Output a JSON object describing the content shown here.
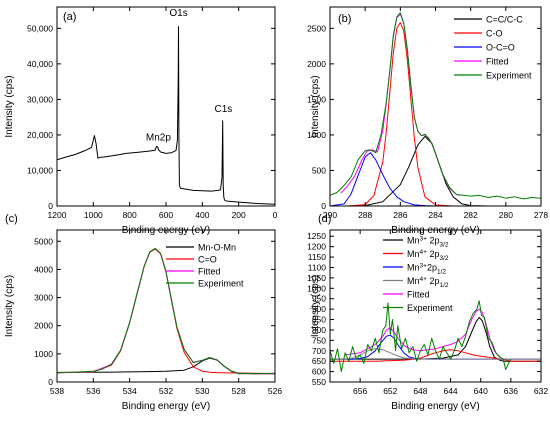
{
  "chart_data": [
    {
      "type": "line",
      "panel_label": "(a)",
      "xlabel": "Binding energy (eV)",
      "ylabel": "Intensity (cps)",
      "xlim": [
        1200,
        0
      ],
      "ylim": [
        0,
        56000
      ],
      "xticks": [
        1200,
        1000,
        800,
        600,
        400,
        200,
        0
      ],
      "yticks": [
        0,
        10000,
        20000,
        30000,
        40000,
        50000
      ],
      "ytick_labels": [
        "0",
        "10,000",
        "20,000",
        "30,000",
        "40,000",
        "50,000"
      ],
      "annotations": [
        {
          "text": "O1s",
          "x": 531,
          "y": 53500
        },
        {
          "text": "Mn2p",
          "x": 642,
          "y": 18500
        },
        {
          "text": "C1s",
          "x": 284,
          "y": 26500
        }
      ],
      "series": [
        {
          "color": "#000000",
          "x": [
            1200,
            1150,
            1100,
            1050,
            1010,
            1000,
            994,
            985,
            975,
            960,
            940,
            900,
            860,
            820,
            780,
            740,
            700,
            660,
            652,
            645,
            640,
            630,
            600,
            570,
            545,
            537,
            533,
            531,
            529,
            526,
            520,
            500,
            450,
            400,
            350,
            300,
            292,
            288,
            285,
            282,
            278,
            270,
            200,
            150,
            100,
            50,
            0
          ],
          "y": [
            13000,
            13800,
            14500,
            15500,
            16500,
            18500,
            19800,
            17500,
            13500,
            13700,
            13800,
            14100,
            14400,
            14800,
            15000,
            15200,
            15400,
            15700,
            16800,
            16500,
            15800,
            15200,
            14800,
            15000,
            15600,
            18500,
            35000,
            50500,
            20000,
            5800,
            5000,
            4800,
            4400,
            4300,
            4200,
            4500,
            8000,
            24000,
            6000,
            2600,
            1700,
            1400,
            1100,
            900,
            700,
            600,
            500
          ]
        }
      ]
    },
    {
      "type": "line",
      "panel_label": "(b)",
      "xlabel": "Binding energy (eV)",
      "ylabel": "Intensity (cps)",
      "xlim": [
        290,
        278
      ],
      "ylim": [
        0,
        2800
      ],
      "xticks": [
        290,
        288,
        286,
        284,
        282,
        280,
        278
      ],
      "yticks": [
        0,
        500,
        1000,
        1500,
        2000,
        2500
      ],
      "legend_placement": "top-right",
      "series": [
        {
          "name": "C=C/C-C",
          "color": "#000000",
          "x": [
            290,
            289,
            288,
            287,
            286,
            285.5,
            285,
            284.6,
            284.2,
            283.8,
            283.4,
            283,
            282.5,
            282,
            281,
            280,
            279,
            278
          ],
          "y": [
            0,
            0,
            5,
            60,
            300,
            560,
            860,
            980,
            880,
            600,
            310,
            130,
            30,
            5,
            0,
            0,
            0,
            0
          ]
        },
        {
          "name": "C-O",
          "color": "#ff0000",
          "x": [
            290,
            289,
            288,
            287.5,
            287,
            286.8,
            286.6,
            286.4,
            286.2,
            286,
            285.8,
            285.6,
            285.4,
            285.2,
            285,
            284.6,
            284,
            283,
            282,
            280,
            278
          ],
          "y": [
            0,
            0,
            20,
            150,
            620,
            1050,
            1600,
            2150,
            2500,
            2580,
            2460,
            2050,
            1500,
            950,
            540,
            130,
            15,
            0,
            0,
            0,
            0
          ]
        },
        {
          "name": "O-C=O",
          "color": "#0000ff",
          "x": [
            290,
            289.2,
            288.8,
            288.4,
            288,
            287.7,
            287.4,
            287,
            286.6,
            286.2,
            285.8,
            285.2,
            284.6,
            284,
            282,
            280,
            278
          ],
          "y": [
            0,
            30,
            170,
            430,
            690,
            750,
            650,
            440,
            250,
            130,
            60,
            15,
            5,
            0,
            0,
            0,
            0
          ]
        },
        {
          "name": "Fitted",
          "color": "#ff00ff",
          "x": [
            289.4,
            289,
            288.6,
            288.2,
            287.9,
            287.6,
            287.3,
            287,
            286.8,
            286.6,
            286.4,
            286.2,
            286,
            285.8,
            285.6,
            285.4,
            285.2,
            285,
            284.8,
            284.6,
            284.4,
            284.2,
            284,
            283.6,
            283.2,
            282.8,
            282.6
          ],
          "y": [
            180,
            280,
            420,
            640,
            770,
            790,
            760,
            1060,
            1450,
            1900,
            2380,
            2650,
            2700,
            2570,
            2200,
            1700,
            1250,
            1050,
            990,
            1000,
            960,
            870,
            740,
            450,
            250,
            160,
            150
          ]
        },
        {
          "name": "Experiment",
          "color": "#008000",
          "x": [
            290,
            289.6,
            289.2,
            288.8,
            288.4,
            288,
            287.7,
            287.4,
            287.1,
            286.8,
            286.6,
            286.4,
            286.2,
            286,
            285.8,
            285.6,
            285.4,
            285.2,
            285,
            284.8,
            284.6,
            284.4,
            284.2,
            284,
            283.6,
            283.2,
            282.8,
            282.4,
            282,
            281.5,
            281,
            280.5,
            280,
            279.5,
            279,
            278.5,
            278
          ],
          "y": [
            150,
            190,
            290,
            410,
            650,
            780,
            790,
            750,
            1000,
            1460,
            1900,
            2400,
            2660,
            2720,
            2570,
            2190,
            1690,
            1240,
            1050,
            990,
            1010,
            950,
            880,
            740,
            450,
            260,
            160,
            150,
            140,
            150,
            120,
            140,
            110,
            130,
            100,
            120,
            110
          ]
        }
      ]
    },
    {
      "type": "line",
      "panel_label": "(c)",
      "xlabel": "Binding energy (eV)",
      "ylabel": "Intensity (cps)",
      "xlim": [
        538,
        526
      ],
      "ylim": [
        0,
        5400
      ],
      "xticks": [
        538,
        536,
        534,
        532,
        530,
        528,
        526
      ],
      "yticks": [
        0,
        1000,
        2000,
        3000,
        4000,
        5000
      ],
      "legend_placement": "top-right",
      "series": [
        {
          "name": "Mn-O-Mn",
          "color": "#000000",
          "x": [
            538,
            537,
            536,
            535,
            534,
            533,
            532,
            531,
            530.5,
            530,
            529.6,
            529.2,
            528.8,
            528.4,
            528,
            527,
            526
          ],
          "y": [
            330,
            340,
            345,
            350,
            360,
            370,
            380,
            420,
            540,
            750,
            850,
            780,
            560,
            380,
            300,
            290,
            290
          ]
        },
        {
          "name": "C=O",
          "color": "#ff0000",
          "x": [
            538,
            536,
            535,
            534.5,
            534,
            533.6,
            533.2,
            532.9,
            532.6,
            532.3,
            532,
            531.7,
            531.4,
            531,
            530.5,
            530,
            529.5,
            529,
            528,
            527,
            526
          ],
          "y": [
            330,
            360,
            600,
            1100,
            2100,
            3100,
            4100,
            4600,
            4720,
            4550,
            3900,
            2900,
            1900,
            1050,
            540,
            380,
            340,
            330,
            320,
            310,
            300
          ]
        },
        {
          "name": "Fitted",
          "color": "#ff00ff",
          "x": [
            538,
            536,
            535,
            534.5,
            534,
            533.6,
            533.2,
            532.9,
            532.6,
            532.3,
            532,
            531.7,
            531.4,
            531,
            530.5,
            530,
            529.6,
            529.2,
            528.8,
            528.4,
            528,
            527,
            526
          ],
          "y": [
            330,
            370,
            620,
            1120,
            2120,
            3120,
            4110,
            4620,
            4740,
            4570,
            3930,
            2930,
            1960,
            1150,
            700,
            770,
            860,
            790,
            570,
            390,
            310,
            300,
            300
          ]
        },
        {
          "name": "Experiment",
          "color": "#008000",
          "x": [
            538,
            537,
            536,
            535.5,
            535,
            534.5,
            534,
            533.6,
            533.2,
            532.9,
            532.6,
            532.3,
            532,
            531.7,
            531.4,
            531,
            530.5,
            530,
            529.6,
            529.2,
            528.8,
            528.4,
            528,
            527,
            526
          ],
          "y": [
            340,
            350,
            380,
            460,
            640,
            1130,
            2120,
            3130,
            4120,
            4620,
            4750,
            4570,
            3920,
            2940,
            1950,
            1160,
            690,
            770,
            870,
            790,
            560,
            390,
            310,
            300,
            310
          ]
        }
      ]
    },
    {
      "type": "line",
      "panel_label": "(d)",
      "xlabel": "Binding energy (eV)",
      "ylabel": "Intensity (cps)",
      "xlim": [
        660,
        632
      ],
      "ylim": [
        550,
        1280
      ],
      "xticks": [
        660,
        656,
        652,
        648,
        644,
        640,
        636,
        632
      ],
      "xtick_labels": [
        "",
        "656",
        "652",
        "648",
        "644",
        "640",
        "636",
        "632"
      ],
      "yticks": [
        550,
        600,
        650,
        700,
        750,
        800,
        850,
        900,
        950,
        1000,
        1050,
        1100,
        1150,
        1200,
        1250
      ],
      "legend_placement": "top-right",
      "legend_entries": [
        {
          "label": "Mn3+ 2p3/2",
          "base": "Mn",
          "sup": "3+",
          "mid": " 2p",
          "sub": "3/2"
        },
        {
          "label": "Mn4+ 2p3/2",
          "base": "Mn",
          "sup": "4+",
          "mid": " 2p",
          "sub": "3/2"
        },
        {
          "label": "Mn3+2p1/2",
          "base": "Mn",
          "sup": "3+",
          "mid": "2p",
          "sub": "1/2"
        },
        {
          "label": "Mn4+ 2p1/2",
          "base": "Mn",
          "sup": "4+",
          "mid": " 2p",
          "sub": "1/2"
        },
        {
          "label": "Fitted",
          "base": "Fitted",
          "sup": "",
          "mid": "",
          "sub": ""
        },
        {
          "label": "Experiment",
          "base": "Experiment",
          "sup": "",
          "mid": "",
          "sub": ""
        }
      ],
      "series": [
        {
          "name": "Mn3+ 2p3/2",
          "color": "#000000",
          "x": [
            660,
            656,
            652,
            648,
            645,
            643,
            642,
            641.2,
            640.6,
            640.2,
            639.8,
            639.3,
            638.8,
            638.2,
            637.5,
            637,
            636,
            632
          ],
          "y": [
            660,
            660,
            660,
            660,
            665,
            680,
            720,
            790,
            840,
            860,
            845,
            790,
            720,
            670,
            655,
            650,
            650,
            650
          ]
        },
        {
          "name": "Mn4+ 2p3/2",
          "color": "#ff0000",
          "x": [
            660,
            654,
            650,
            648,
            646.5,
            645,
            644,
            643,
            642,
            641,
            640.2,
            639.2,
            638.2,
            637.2,
            636.5,
            636,
            632
          ],
          "y": [
            650,
            650,
            655,
            665,
            685,
            700,
            705,
            700,
            690,
            680,
            675,
            670,
            665,
            660,
            655,
            650,
            650
          ]
        },
        {
          "name": "Mn3+2p1/2",
          "color": "#0000ff",
          "x": [
            660,
            657,
            656,
            655,
            654,
            653.2,
            652.5,
            652,
            651.5,
            651,
            650.2,
            649.5,
            648.5,
            647,
            644,
            640,
            632
          ],
          "y": [
            660,
            660,
            663,
            672,
            700,
            740,
            770,
            775,
            760,
            730,
            690,
            670,
            662,
            660,
            660,
            660,
            660
          ]
        },
        {
          "name": "Mn4+ 2p1/2",
          "color": "#808080",
          "x": [
            660,
            658,
            657,
            656,
            655.5,
            655,
            654,
            653,
            652,
            651,
            650,
            648,
            646,
            644,
            640,
            632
          ],
          "y": [
            660,
            660,
            665,
            680,
            690,
            700,
            710,
            705,
            690,
            675,
            665,
            660,
            660,
            660,
            660,
            660
          ]
        },
        {
          "name": "Fitted",
          "color": "#ff00ff",
          "x": [
            658,
            656,
            655,
            654,
            653,
            652.5,
            652,
            651.5,
            651,
            650,
            649,
            648,
            647,
            646,
            645,
            644,
            643,
            642,
            641.2,
            640.6,
            640.2,
            639.8,
            639.3,
            638.8,
            638.2,
            637.5,
            637
          ],
          "y": [
            680,
            690,
            710,
            730,
            770,
            800,
            810,
            790,
            760,
            720,
            705,
            700,
            705,
            710,
            720,
            730,
            745,
            780,
            850,
            890,
            900,
            885,
            830,
            760,
            700,
            670,
            660
          ]
        },
        {
          "name": "Experiment",
          "color": "#008000",
          "x": [
            660,
            659.5,
            659,
            658.5,
            658,
            657.5,
            657,
            656.5,
            656,
            655.5,
            655,
            654.5,
            654,
            653.5,
            653,
            652.6,
            652.3,
            652,
            651.7,
            651.3,
            651,
            650.5,
            650,
            649.5,
            649,
            648.5,
            648,
            647.5,
            647,
            646.5,
            646,
            645.5,
            645,
            644.5,
            644,
            643.5,
            643,
            642.5,
            642,
            641.5,
            641,
            640.5,
            640.2,
            639.9,
            639.5,
            639,
            638.5,
            638,
            637.5,
            637,
            636.7,
            636.3,
            636
          ],
          "y": [
            700,
            640,
            710,
            600,
            690,
            650,
            720,
            660,
            680,
            640,
            730,
            700,
            760,
            690,
            800,
            820,
            930,
            780,
            850,
            700,
            820,
            710,
            760,
            690,
            720,
            650,
            700,
            730,
            680,
            760,
            700,
            660,
            720,
            690,
            660,
            700,
            760,
            720,
            770,
            840,
            880,
            900,
            940,
            870,
            860,
            760,
            740,
            690,
            670,
            660,
            610,
            640,
            660
          ]
        }
      ]
    }
  ]
}
